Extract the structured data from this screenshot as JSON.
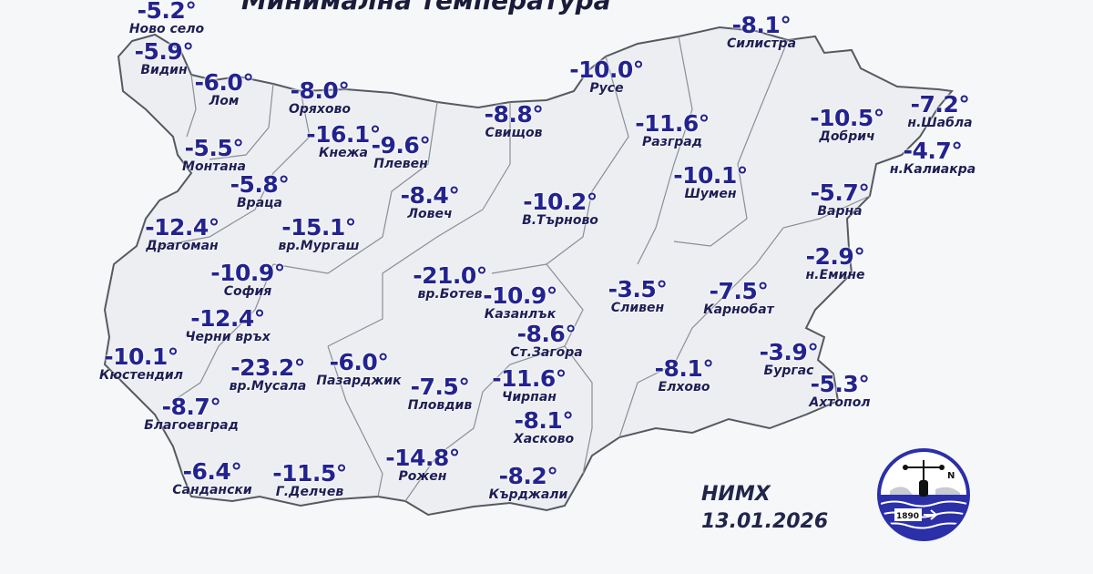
{
  "title": "Минимална температура",
  "colors": {
    "temperature": "#23238f",
    "station_name": "#1e1e55",
    "land": "#eceef2",
    "border": "#555a60",
    "logo_blue": "#2b2fa8"
  },
  "stations": [
    {
      "name": "Ново село",
      "temp": "-5.2°"
    },
    {
      "name": "Видин",
      "temp": "-5.9°"
    },
    {
      "name": "Лом",
      "temp": "-6.0°"
    },
    {
      "name": "Оряхово",
      "temp": "-8.0°"
    },
    {
      "name": "Свищов",
      "temp": "-8.8°"
    },
    {
      "name": "Русе",
      "temp": "-10.0°"
    },
    {
      "name": "Силистра",
      "temp": "-8.1°"
    },
    {
      "name": "Разград",
      "temp": "-11.6°"
    },
    {
      "name": "Добрич",
      "temp": "-10.5°"
    },
    {
      "name": "н.Шабла",
      "temp": "-7.2°"
    },
    {
      "name": "н.Калиакра",
      "temp": "-4.7°"
    },
    {
      "name": "Шумен",
      "temp": "-10.1°"
    },
    {
      "name": "Варна",
      "temp": "-5.7°"
    },
    {
      "name": "н.Емине",
      "temp": "-2.9°"
    },
    {
      "name": "Сливен",
      "temp": "-3.5°"
    },
    {
      "name": "Карнобат",
      "temp": "-7.5°"
    },
    {
      "name": "Бургас",
      "temp": "-3.9°"
    },
    {
      "name": "Ахтопол",
      "temp": "-5.3°"
    },
    {
      "name": "Елхово",
      "temp": "-8.1°"
    },
    {
      "name": "Монтана",
      "temp": "-5.5°"
    },
    {
      "name": "Кнежа",
      "temp": "-16.1°"
    },
    {
      "name": "Плевен",
      "temp": "-9.6°"
    },
    {
      "name": "Враца",
      "temp": "-5.8°"
    },
    {
      "name": "Ловеч",
      "temp": "-8.4°"
    },
    {
      "name": "В.Търново",
      "temp": "-10.2°"
    },
    {
      "name": "Драгоман",
      "temp": "-12.4°"
    },
    {
      "name": "вр.Мургаш",
      "temp": "-15.1°"
    },
    {
      "name": "София",
      "temp": "-10.9°"
    },
    {
      "name": "вр.Ботев",
      "temp": "-21.0°"
    },
    {
      "name": "Казанлък",
      "temp": "-10.9°"
    },
    {
      "name": "Черни връх",
      "temp": "-12.4°"
    },
    {
      "name": "Ст.Загора",
      "temp": "-8.6°"
    },
    {
      "name": "Кюстендил",
      "temp": "-10.1°"
    },
    {
      "name": "вр.Мусала",
      "temp": "-23.2°"
    },
    {
      "name": "Пазарджик",
      "temp": "-6.0°"
    },
    {
      "name": "Пловдив",
      "temp": "-7.5°"
    },
    {
      "name": "Чирпан",
      "temp": "-11.6°"
    },
    {
      "name": "Благоевград",
      "temp": "-8.7°"
    },
    {
      "name": "Хасково",
      "temp": "-8.1°"
    },
    {
      "name": "Сандански",
      "temp": "-6.4°"
    },
    {
      "name": "Г.Делчев",
      "temp": "-11.5°"
    },
    {
      "name": "Рожен",
      "temp": "-14.8°"
    },
    {
      "name": "Кърджали",
      "temp": "-8.2°"
    }
  ],
  "footer": {
    "organization": "НИМХ",
    "date": "13.01.2026"
  },
  "logo": {
    "year": "1890",
    "compass_letter": "N"
  }
}
